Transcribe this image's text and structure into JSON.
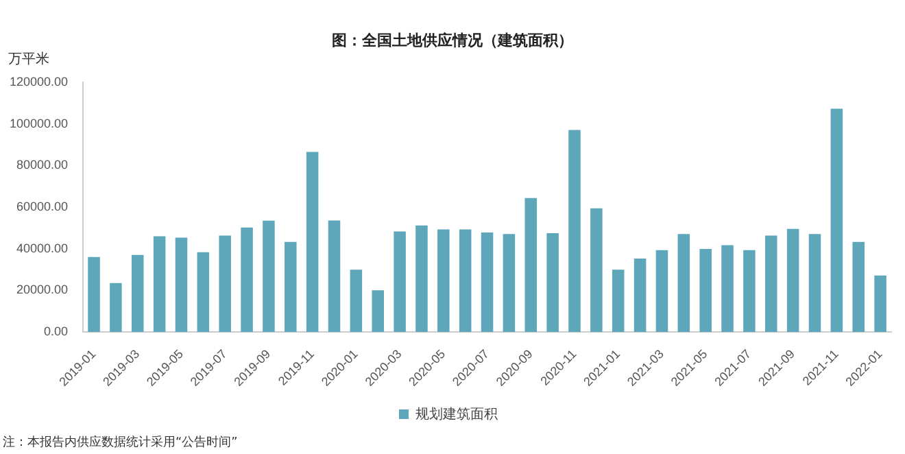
{
  "chart_data": {
    "type": "bar",
    "title": "图：全国土地供应情况（建筑面积）",
    "ylabel": "万平米",
    "categories": [
      "2019-01",
      null,
      "2019-03",
      null,
      "2019-05",
      null,
      "2019-07",
      null,
      "2019-09",
      null,
      "2019-11",
      null,
      "2020-01",
      null,
      "2020-03",
      null,
      "2020-05",
      null,
      "2020-07",
      null,
      "2020-09",
      null,
      "2020-11",
      null,
      "2021-01",
      null,
      "2021-03",
      null,
      "2021-05",
      null,
      "2021-07",
      null,
      "2021-09",
      null,
      "2021-11",
      null,
      "2022-01"
    ],
    "series": [
      {
        "name": "规划建筑面积",
        "color": "#5ea7bb",
        "values": [
          36000,
          23500,
          37000,
          46000,
          45300,
          38300,
          46300,
          50200,
          53500,
          43300,
          86500,
          53600,
          29900,
          20000,
          48300,
          51200,
          49300,
          49300,
          47800,
          47100,
          64400,
          47500,
          97100,
          59400,
          29900,
          35300,
          39300,
          47100,
          39900,
          41700,
          39300,
          46300,
          49500,
          47100,
          107300,
          43300,
          27100
        ]
      }
    ],
    "ylim": [
      0,
      120000
    ],
    "yticks": [
      {
        "value": 0,
        "label": "0.00"
      },
      {
        "value": 20000,
        "label": "20000.00"
      },
      {
        "value": 40000,
        "label": "40000.00"
      },
      {
        "value": 60000,
        "label": "60000.00"
      },
      {
        "value": 80000,
        "label": "80000.00"
      },
      {
        "value": 100000,
        "label": "100000.00"
      },
      {
        "value": 120000,
        "label": "120000.00"
      }
    ],
    "grid": false,
    "legend": "bottom",
    "annotations": [
      "注：本报告内供应数据统计采用“公告时间”"
    ]
  }
}
